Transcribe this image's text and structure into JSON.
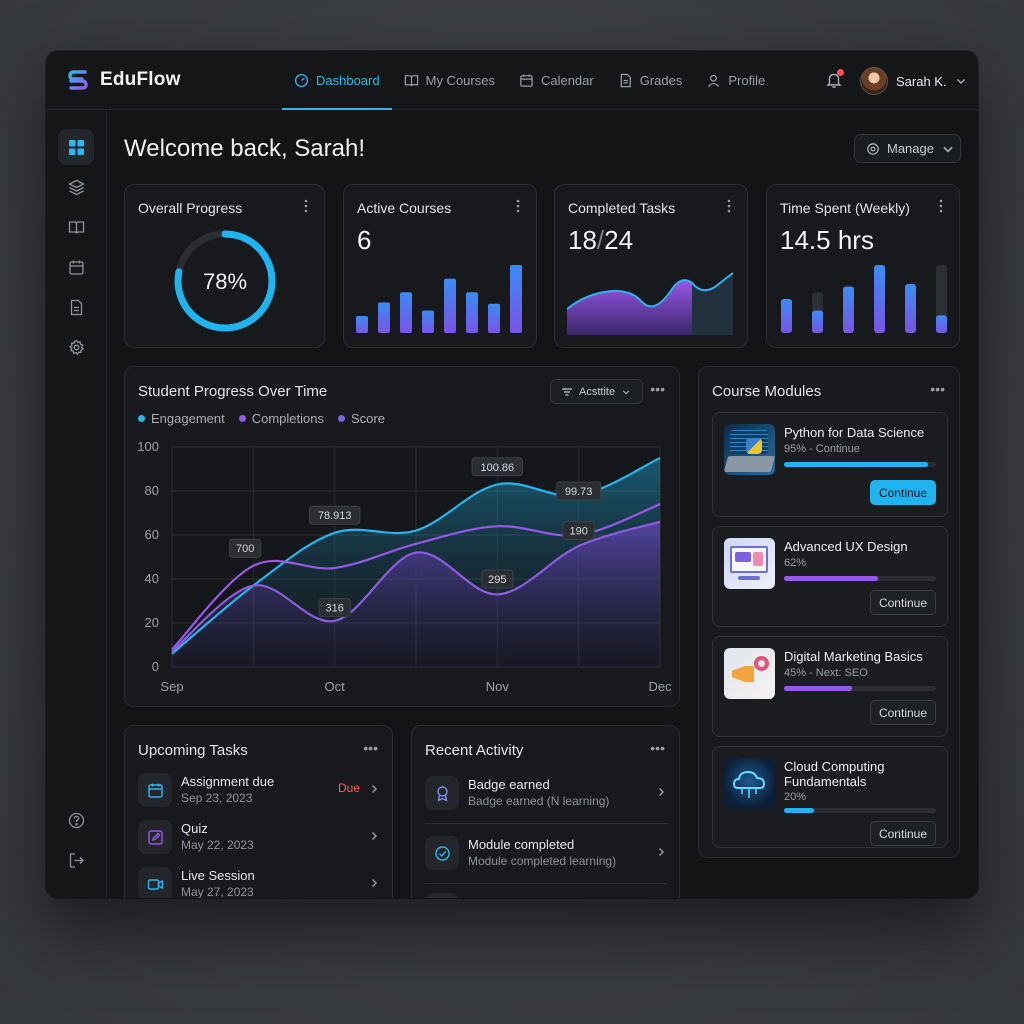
{
  "app": {
    "name": "EduFlow"
  },
  "nav": {
    "items": [
      {
        "label": "Dashboard",
        "icon": "gauge-icon",
        "active": true
      },
      {
        "label": "My Courses",
        "icon": "book-icon"
      },
      {
        "label": "Calendar",
        "icon": "calendar-icon"
      },
      {
        "label": "Grades",
        "icon": "document-icon"
      },
      {
        "label": "Profile",
        "icon": "user-icon"
      }
    ]
  },
  "user": {
    "name": "Sarah K."
  },
  "welcome": "Welcome back, Sarah!",
  "manage_label": "Manage",
  "stats": {
    "progress": {
      "title": "Overall Progress",
      "value": "78%",
      "fraction": 0.78
    },
    "courses": {
      "title": "Active Courses",
      "value": "6",
      "bars": [
        0.25,
        0.45,
        0.6,
        0.33,
        0.8,
        0.6,
        0.43,
        1.0
      ]
    },
    "tasks": {
      "title": "Completed Tasks",
      "done": "18",
      "sep": "/",
      "total": "24"
    },
    "time": {
      "title": "Time Spent (Weekly)",
      "value": "14.5 hrs",
      "bars": [
        0.5,
        0.33,
        0.68,
        1.0,
        0.72,
        0.26
      ],
      "bar_levels": [
        0.5,
        0.6,
        0.7,
        1.0,
        0.72,
        1.0
      ]
    }
  },
  "progress_chart": {
    "title": "Student Progress Over Time",
    "filter_label": "Acsttite"
  },
  "chart_data": {
    "type": "line",
    "title": "Student Progress Over Time",
    "x": [
      "Sep",
      "Oct",
      "Nov",
      "Dec"
    ],
    "ylim": [
      0,
      100
    ],
    "yticks": [
      0,
      20,
      40,
      60,
      80,
      100
    ],
    "series": [
      {
        "name": "Engagement",
        "color": "#27b5ef",
        "points": [
          [
            0,
            6
          ],
          [
            0.5,
            37
          ],
          [
            1,
            61
          ],
          [
            1.5,
            62
          ],
          [
            2,
            83
          ],
          [
            2.5,
            78
          ],
          [
            3,
            95
          ]
        ]
      },
      {
        "name": "Completions",
        "color": "#9a57ea",
        "points": [
          [
            0,
            8
          ],
          [
            0.5,
            46
          ],
          [
            1,
            45
          ],
          [
            1.5,
            56
          ],
          [
            2,
            64
          ],
          [
            2.5,
            60
          ],
          [
            3,
            74
          ]
        ]
      },
      {
        "name": "Score",
        "color": "#8e5ce0",
        "points": [
          [
            0,
            7
          ],
          [
            0.5,
            37
          ],
          [
            1,
            21
          ],
          [
            1.5,
            52
          ],
          [
            2,
            33
          ],
          [
            2.5,
            55
          ],
          [
            3,
            66
          ]
        ]
      }
    ],
    "annotations": [
      {
        "text": "700",
        "x": 0.45,
        "y": 54
      },
      {
        "text": "78.913",
        "x": 1.0,
        "y": 69
      },
      {
        "text": "316",
        "x": 1.0,
        "y": 27
      },
      {
        "text": "100.86",
        "x": 2.0,
        "y": 91
      },
      {
        "text": "295",
        "x": 2.0,
        "y": 40
      },
      {
        "text": "99.73",
        "x": 2.5,
        "y": 80
      },
      {
        "text": "190",
        "x": 2.5,
        "y": 62
      }
    ]
  },
  "modules": {
    "title": "Course Modules",
    "items": [
      {
        "title": "Python for Data Science",
        "sub": "95% - Continue",
        "progress": 0.95,
        "color": "#1fb4ef",
        "button": "Continue",
        "primary": true
      },
      {
        "title": "Advanced UX Design",
        "sub": "62%",
        "progress": 0.62,
        "color": "#9a57ea",
        "button": "Continue"
      },
      {
        "title": "Digital Marketing Basics",
        "sub": "45% - Next: SEO",
        "progress": 0.45,
        "color": "#9a57ea",
        "button": "Continue"
      },
      {
        "title": "Cloud Computing Fundamentals",
        "sub": "20%",
        "progress": 0.2,
        "color": "#1fb4ef",
        "button": "Continue"
      }
    ]
  },
  "tasks": {
    "title": "Upcoming Tasks",
    "items": [
      {
        "title": "Assignment due",
        "date": "Sep 23, 2023",
        "badge": "Due"
      },
      {
        "title": "Quiz",
        "date": "May 22, 2023"
      },
      {
        "title": "Live Session",
        "date": "May 27, 2023"
      }
    ]
  },
  "activity": {
    "title": "Recent Activity",
    "items": [
      {
        "title": "Badge earned",
        "sub": "Badge earned (N learning)"
      },
      {
        "title": "Module completed",
        "sub": "Module completed learning)"
      }
    ]
  },
  "colors": {
    "accent": "#2db6f2",
    "purple": "#9a57ea",
    "due": "#ff5d5d"
  }
}
